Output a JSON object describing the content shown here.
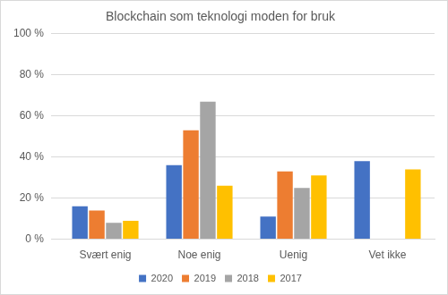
{
  "chart_data": {
    "type": "bar",
    "title": "Blockchain som teknologi moden for bruk",
    "categories": [
      "Svært enig",
      "Noe enig",
      "Uenig",
      "Vet ikke"
    ],
    "series": [
      {
        "name": "2020",
        "color": "#4472c4",
        "values": [
          16,
          36,
          11,
          38
        ]
      },
      {
        "name": "2019",
        "color": "#ed7d31",
        "values": [
          14,
          53,
          33,
          null
        ]
      },
      {
        "name": "2018",
        "color": "#a5a5a5",
        "values": [
          8,
          67,
          25,
          null
        ]
      },
      {
        "name": "2017",
        "color": "#ffc000",
        "values": [
          9,
          26,
          31,
          34
        ]
      }
    ],
    "ylim": [
      0,
      100
    ],
    "yticks": [
      {
        "value": 0,
        "label": "0 %"
      },
      {
        "value": 20,
        "label": "20 %"
      },
      {
        "value": 40,
        "label": "40 %"
      },
      {
        "value": 60,
        "label": "60 %"
      },
      {
        "value": 80,
        "label": "80 %"
      },
      {
        "value": 100,
        "label": "100 %"
      }
    ],
    "grid": true,
    "legend": "bottom"
  }
}
